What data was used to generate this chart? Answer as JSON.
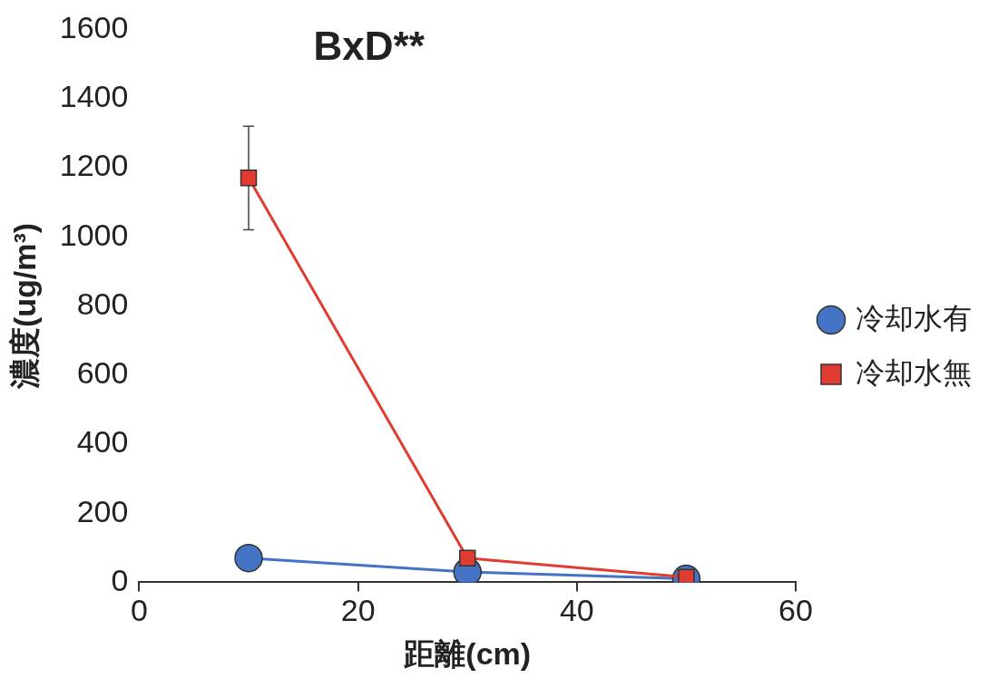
{
  "chart_data": {
    "type": "line",
    "title": "BxD**",
    "xlabel": "距離(cm)",
    "ylabel": "濃度(ug/m³)",
    "x": [
      10,
      30,
      50
    ],
    "series": [
      {
        "name": "冷却水有",
        "color": "#4472c4",
        "marker": "circle",
        "values": [
          70,
          30,
          10
        ]
      },
      {
        "name": "冷却水無",
        "color": "#e03c31",
        "marker": "square",
        "values": [
          1170,
          70,
          15
        ],
        "errors": [
          150,
          null,
          null
        ]
      }
    ],
    "xlim": [
      0,
      60
    ],
    "xticks": [
      0,
      20,
      40,
      60
    ],
    "ylim": [
      0,
      1600
    ],
    "yticks": [
      0,
      200,
      400,
      600,
      800,
      1000,
      1200,
      1400,
      1600
    ],
    "grid": false,
    "legend": "right",
    "line_style": "solid"
  }
}
